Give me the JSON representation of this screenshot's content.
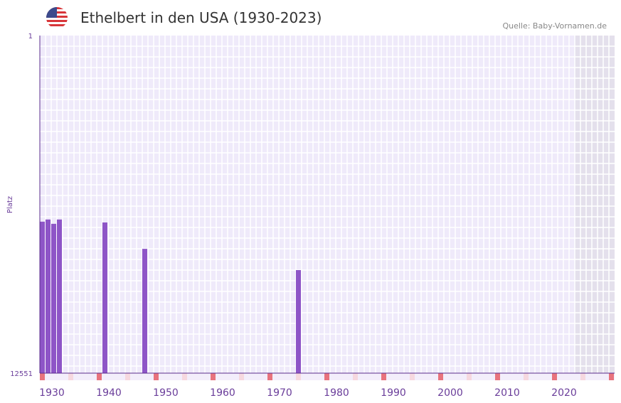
{
  "header": {
    "title": "Ethelbert in den USA (1930-2023)",
    "source": "Quelle: Baby-Vornamen.de",
    "flag": "usa-flag-icon"
  },
  "chart_data": {
    "type": "bar",
    "title": "Ethelbert in den USA (1930-2023)",
    "ylabel": "Platz",
    "ylim": [
      1,
      12551
    ],
    "y_inverted": true,
    "y_ticks": [
      "1",
      "12551"
    ],
    "x_range": [
      1930,
      2030
    ],
    "x_ticks": [
      1930,
      1940,
      1950,
      1960,
      1970,
      1980,
      1990,
      2000,
      2010,
      2020
    ],
    "data_end_year": 2023,
    "bars": [
      {
        "year": 1930,
        "rank": 6920
      },
      {
        "year": 1931,
        "rank": 6840
      },
      {
        "year": 1932,
        "rank": 7000
      },
      {
        "year": 1933,
        "rank": 6840
      },
      {
        "year": 1941,
        "rank": 6950
      },
      {
        "year": 1948,
        "rank": 7930
      },
      {
        "year": 1975,
        "rank": 8720
      }
    ],
    "colors": {
      "bar": "#8e55c7",
      "axis": "#5b2d8e",
      "grid_bg": "#efeafa",
      "future": "#e4e0ec",
      "marker": "#e8737d",
      "marker_light": "#f6d8df"
    }
  }
}
